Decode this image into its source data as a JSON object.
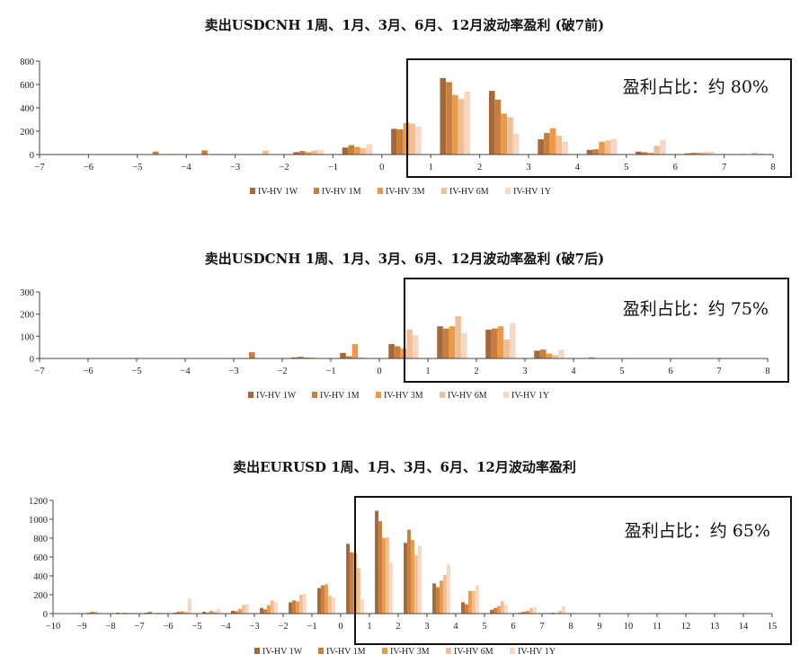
{
  "colors": [
    "#A6683A",
    "#C87F3E",
    "#EC9A45",
    "#F1BE97",
    "#F7D6C3"
  ],
  "chart_data": [
    {
      "type": "bar",
      "title": "卖出USDCNH 1周、1月、3月、6月、12月波动率盈利 (破7前)",
      "series_names": [
        "IV-HV 1W",
        "IV-HV 1M",
        "IV-HV 3M",
        "IV-HV 6M",
        "IV-HV 1Y"
      ],
      "x": [
        -7,
        -6,
        -5,
        -4,
        -3,
        -2,
        -1,
        0,
        1,
        2,
        3,
        4,
        5,
        6,
        7
      ],
      "series": [
        {
          "name": "IV-HV 1W",
          "values": [
            0,
            0,
            0,
            0,
            0,
            20,
            60,
            220,
            655,
            545,
            130,
            40,
            25,
            10,
            0
          ]
        },
        {
          "name": "IV-HV 1M",
          "values": [
            0,
            0,
            25,
            35,
            0,
            30,
            80,
            215,
            620,
            470,
            185,
            45,
            20,
            15,
            5
          ]
        },
        {
          "name": "IV-HV 3M",
          "values": [
            0,
            0,
            0,
            0,
            0,
            20,
            65,
            270,
            510,
            350,
            225,
            110,
            15,
            15,
            0
          ]
        },
        {
          "name": "IV-HV 6M",
          "values": [
            0,
            0,
            5,
            5,
            35,
            35,
            55,
            265,
            475,
            320,
            160,
            120,
            75,
            20,
            15
          ]
        },
        {
          "name": "IV-HV 1Y",
          "values": [
            0,
            0,
            0,
            0,
            0,
            40,
            90,
            240,
            540,
            180,
            110,
            135,
            125,
            25,
            10
          ]
        }
      ],
      "xlim": [
        -7,
        8
      ],
      "ylim": [
        0,
        800
      ],
      "yticks": [
        0,
        200,
        400,
        600,
        800
      ],
      "annotation": "盈利占比：约 80%",
      "box_from_x": 0.5,
      "legend_position": "bottom"
    },
    {
      "type": "bar",
      "title": "卖出USDCNH 1周、1月、3月、6月、12月波动率盈利 (破7后)",
      "series_names": [
        "IV-HV 1W",
        "IV-HV 1M",
        "IV-HV 3M",
        "IV-HV 6M",
        "IV-HV 1Y"
      ],
      "x": [
        -7,
        -6,
        -5,
        -4,
        -3,
        -2,
        -1,
        0,
        1,
        2,
        3,
        4,
        5,
        6,
        7
      ],
      "series": [
        {
          "name": "IV-HV 1W",
          "values": [
            0,
            0,
            0,
            0,
            0,
            5,
            25,
            65,
            145,
            130,
            35,
            0,
            0,
            0,
            0
          ]
        },
        {
          "name": "IV-HV 1M",
          "values": [
            0,
            0,
            0,
            0,
            28,
            8,
            10,
            55,
            135,
            135,
            40,
            5,
            0,
            0,
            0
          ]
        },
        {
          "name": "IV-HV 3M",
          "values": [
            0,
            0,
            0,
            0,
            0,
            5,
            65,
            45,
            145,
            145,
            22,
            0,
            0,
            0,
            0
          ]
        },
        {
          "name": "IV-HV 6M",
          "values": [
            0,
            0,
            0,
            0,
            0,
            5,
            5,
            130,
            190,
            85,
            15,
            0,
            0,
            0,
            0
          ]
        },
        {
          "name": "IV-HV 1Y",
          "values": [
            0,
            0,
            0,
            0,
            0,
            0,
            0,
            105,
            115,
            160,
            40,
            0,
            0,
            0,
            0
          ]
        }
      ],
      "xlim": [
        -7,
        8
      ],
      "ylim": [
        0,
        300
      ],
      "yticks": [
        0,
        100,
        200,
        300
      ],
      "annotation": "盈利占比：约 75%",
      "box_from_x": 0.5,
      "legend_position": "bottom"
    },
    {
      "type": "bar",
      "title": "卖出EURUSD 1周、1月、3月、6月、12月波动率盈利",
      "series_names": [
        "IV-HV 1W",
        "IV-HV 1M",
        "IV-HV 3M",
        "IV-HV 6M",
        "IV-HV 1Y"
      ],
      "x": [
        -10,
        -9,
        -8,
        -7,
        -6,
        -5,
        -4,
        -3,
        -2,
        -1,
        0,
        1,
        2,
        3,
        4,
        5,
        6,
        7,
        8,
        9,
        10,
        11,
        12,
        13,
        14
      ],
      "series": [
        {
          "name": "IV-HV 1W",
          "values": [
            0,
            10,
            10,
            10,
            10,
            20,
            30,
            60,
            120,
            270,
            740,
            1090,
            750,
            320,
            120,
            40,
            10,
            5,
            0,
            0,
            0,
            0,
            0,
            0,
            0
          ]
        },
        {
          "name": "IV-HV 1M",
          "values": [
            0,
            20,
            5,
            20,
            20,
            10,
            25,
            45,
            140,
            300,
            650,
            980,
            890,
            280,
            100,
            60,
            20,
            10,
            0,
            0,
            0,
            0,
            0,
            0,
            0
          ]
        },
        {
          "name": "IV-HV 3M",
          "values": [
            0,
            15,
            10,
            5,
            25,
            30,
            50,
            90,
            130,
            310,
            640,
            800,
            780,
            350,
            240,
            80,
            30,
            5,
            0,
            0,
            0,
            0,
            0,
            0,
            0
          ]
        },
        {
          "name": "IV-HV 6M",
          "values": [
            0,
            5,
            0,
            10,
            20,
            20,
            90,
            140,
            200,
            190,
            480,
            810,
            620,
            410,
            240,
            130,
            60,
            30,
            0,
            0,
            0,
            0,
            0,
            0,
            0
          ]
        },
        {
          "name": "IV-HV 1Y",
          "values": [
            0,
            0,
            10,
            10,
            160,
            50,
            100,
            120,
            210,
            170,
            150,
            540,
            720,
            520,
            300,
            90,
            70,
            80,
            0,
            0,
            0,
            0,
            0,
            0,
            0
          ]
        }
      ],
      "xlim": [
        -10,
        15
      ],
      "ylim": [
        0,
        1200
      ],
      "yticks": [
        0,
        200,
        400,
        600,
        800,
        1000,
        1200
      ],
      "annotation": "盈利占比：约 65%",
      "box_from_x": 0.5,
      "legend_position": "bottom"
    }
  ]
}
